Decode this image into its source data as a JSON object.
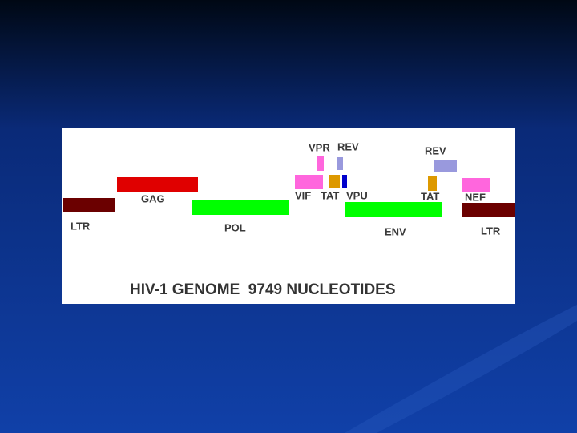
{
  "diagram": {
    "title": "HIV-1 GENOME  9749 NUCLEOTIDES",
    "genes": [
      {
        "label": "LTR"
      },
      {
        "label": "GAG"
      },
      {
        "label": "POL"
      },
      {
        "label": "VIF"
      },
      {
        "label": "VPR"
      },
      {
        "label": "REV"
      },
      {
        "label": "TAT"
      },
      {
        "label": "VPU"
      },
      {
        "label": "ENV"
      },
      {
        "label": "TAT"
      },
      {
        "label": "REV"
      },
      {
        "label": "NEF"
      },
      {
        "label": "LTR"
      }
    ]
  }
}
